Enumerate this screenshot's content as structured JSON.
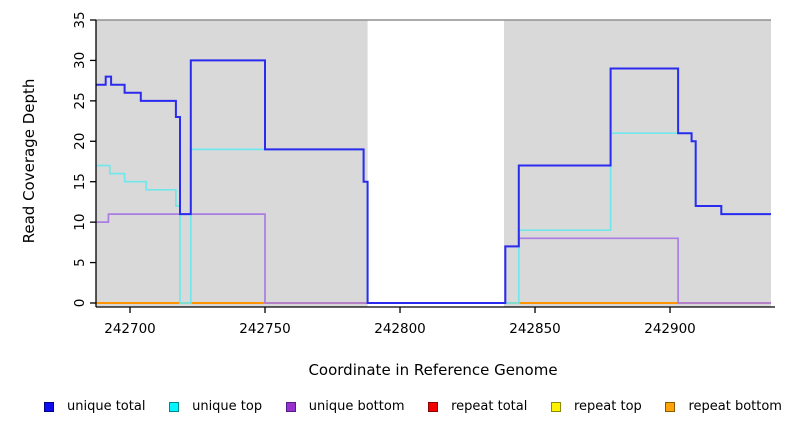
{
  "y_axis": {
    "label": "Read Coverage Depth",
    "ticks": [
      0,
      5,
      10,
      15,
      20,
      25,
      30,
      35
    ],
    "range": [
      0,
      35
    ]
  },
  "x_axis": {
    "label": "Coordinate in Reference Genome",
    "ticks": [
      242700,
      242750,
      242800,
      242850,
      242900
    ],
    "range": [
      242687.4,
      242937.4
    ]
  },
  "background": {
    "shaded_color": "#d9d9d9",
    "shaded_regions": [
      [
        242687.4,
        242788
      ],
      [
        242838.5,
        242937.4
      ]
    ],
    "gap_region": [
      242788,
      242838.5
    ],
    "top_rule_y": 35,
    "top_rule_color": "#8f8f8f"
  },
  "chart_data": {
    "type": "line",
    "step": true,
    "title": "",
    "xlabel": "Coordinate in Reference Genome",
    "ylabel": "Read Coverage Depth",
    "xlim": [
      242687.4,
      242937.4
    ],
    "ylim": [
      0,
      35
    ],
    "grid": false,
    "legend_position": "bottom",
    "series": [
      {
        "name": "repeat total",
        "color": "#e00000",
        "width": 1.4,
        "points": [
          [
            242687.4,
            0
          ]
        ]
      },
      {
        "name": "repeat top",
        "color": "#ffe100",
        "width": 1.4,
        "points": [
          [
            242687.4,
            0
          ]
        ]
      },
      {
        "name": "repeat bottom",
        "color": "#ff9301",
        "width": 2,
        "points": [
          [
            242687.4,
            0
          ]
        ]
      },
      {
        "name": "unique bottom",
        "color": "#a97de2",
        "width": 1.7,
        "points": [
          [
            242687.4,
            10
          ],
          [
            242692,
            11
          ],
          [
            242750,
            0
          ],
          [
            242839,
            7
          ],
          [
            242844,
            8
          ],
          [
            242903,
            0
          ]
        ]
      },
      {
        "name": "unique top",
        "color": "#72e7eb",
        "width": 1.7,
        "points": [
          [
            242687.4,
            17
          ],
          [
            242692.5,
            16
          ],
          [
            242698,
            15
          ],
          [
            242706,
            14
          ],
          [
            242717,
            12
          ],
          [
            242718.5,
            0
          ],
          [
            242722.5,
            19
          ],
          [
            242786.5,
            15
          ],
          [
            242788,
            0
          ],
          [
            242844,
            9
          ],
          [
            242878,
            21
          ],
          [
            242908,
            20
          ],
          [
            242909.5,
            12
          ],
          [
            242919,
            11
          ]
        ]
      },
      {
        "name": "unique total",
        "color": "#2b2bf0",
        "width": 2,
        "points": [
          [
            242687.4,
            27
          ],
          [
            242691,
            28
          ],
          [
            242693,
            27
          ],
          [
            242698,
            26
          ],
          [
            242704,
            25
          ],
          [
            242717,
            23
          ],
          [
            242718.5,
            11
          ],
          [
            242722.5,
            30
          ],
          [
            242750,
            19
          ],
          [
            242786.5,
            15
          ],
          [
            242788,
            0
          ],
          [
            242839,
            7
          ],
          [
            242844,
            17
          ],
          [
            242878,
            29
          ],
          [
            242903,
            21
          ],
          [
            242908,
            20
          ],
          [
            242909.5,
            12
          ],
          [
            242919,
            11
          ]
        ]
      }
    ]
  },
  "legend": {
    "items": [
      {
        "label": "unique total",
        "fill": "#0d0df0",
        "border": "#00008b"
      },
      {
        "label": "unique top",
        "fill": "#00f5ff",
        "border": "#00868b"
      },
      {
        "label": "unique bottom",
        "fill": "#9932cc",
        "border": "#551a8b"
      },
      {
        "label": "repeat total",
        "fill": "#f00000",
        "border": "#8b0000"
      },
      {
        "label": "repeat top",
        "fill": "#fff200",
        "border": "#8b8b00"
      },
      {
        "label": "repeat bottom",
        "fill": "#ffa408",
        "border": "#8b5a00"
      }
    ]
  }
}
